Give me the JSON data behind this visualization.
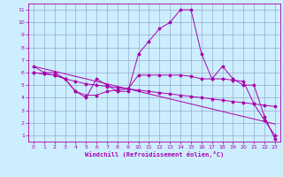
{
  "xlabel": "Windchill (Refroidissement éolien,°C)",
  "bg_color": "#cceeff",
  "grid_color": "#99aacc",
  "line_color": "#aa00aa",
  "line1_y": [
    6.5,
    6.0,
    6.0,
    5.5,
    4.5,
    4.0,
    5.5,
    5.0,
    4.5,
    4.5,
    7.5,
    8.5,
    9.5,
    10.0,
    11.0,
    11.0,
    7.5,
    5.5,
    6.5,
    5.5,
    5.0,
    5.0,
    2.5,
    0.7
  ],
  "line2_y": [
    6.5,
    6.3,
    6.1,
    5.9,
    5.7,
    5.5,
    5.3,
    5.1,
    4.9,
    4.7,
    4.5,
    4.3,
    4.1,
    3.9,
    3.7,
    3.5,
    3.3,
    3.1,
    2.9,
    2.7,
    2.5,
    2.3,
    2.1,
    1.9
  ],
  "line3_y": [
    6.0,
    5.9,
    5.8,
    5.5,
    4.5,
    4.2,
    4.2,
    4.5,
    4.6,
    4.7,
    5.8,
    5.8,
    5.8,
    5.8,
    5.8,
    5.7,
    5.5,
    5.5,
    5.5,
    5.4,
    5.3,
    3.5,
    2.2,
    1.0
  ],
  "line4_y": [
    6.0,
    5.9,
    5.8,
    5.5,
    5.3,
    5.1,
    5.0,
    4.9,
    4.8,
    4.7,
    4.6,
    4.5,
    4.4,
    4.3,
    4.2,
    4.1,
    4.0,
    3.9,
    3.8,
    3.7,
    3.6,
    3.5,
    3.4,
    3.3
  ],
  "xlim": [
    -0.5,
    23.5
  ],
  "ylim": [
    0.5,
    11.5
  ],
  "yticks": [
    1,
    2,
    3,
    4,
    5,
    6,
    7,
    8,
    9,
    10,
    11
  ],
  "xticks": [
    0,
    1,
    2,
    3,
    4,
    5,
    6,
    7,
    8,
    9,
    10,
    11,
    12,
    13,
    14,
    15,
    16,
    17,
    18,
    19,
    20,
    21,
    22,
    23
  ]
}
